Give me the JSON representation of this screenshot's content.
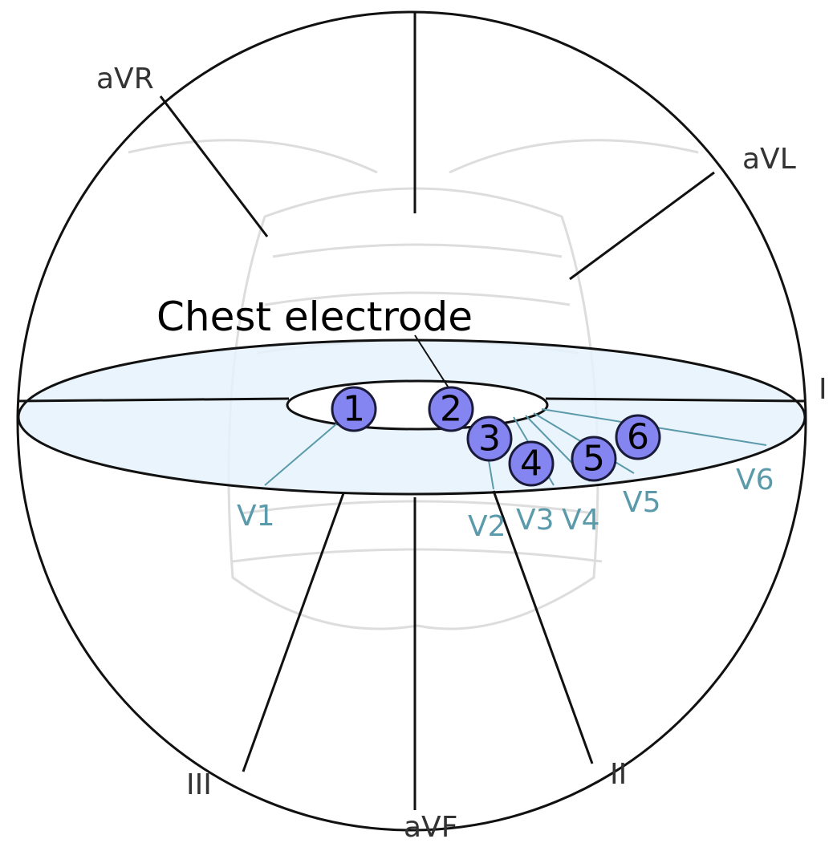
{
  "title": "Chest electrode",
  "limb_leads": [
    "aVR",
    "aVL",
    "I",
    "II",
    "III",
    "aVF"
  ],
  "chest_leads": [
    "V1",
    "V2",
    "V3",
    "V4",
    "V5",
    "V6"
  ],
  "electrodes": [
    "1",
    "2",
    "3",
    "4",
    "5",
    "6"
  ]
}
